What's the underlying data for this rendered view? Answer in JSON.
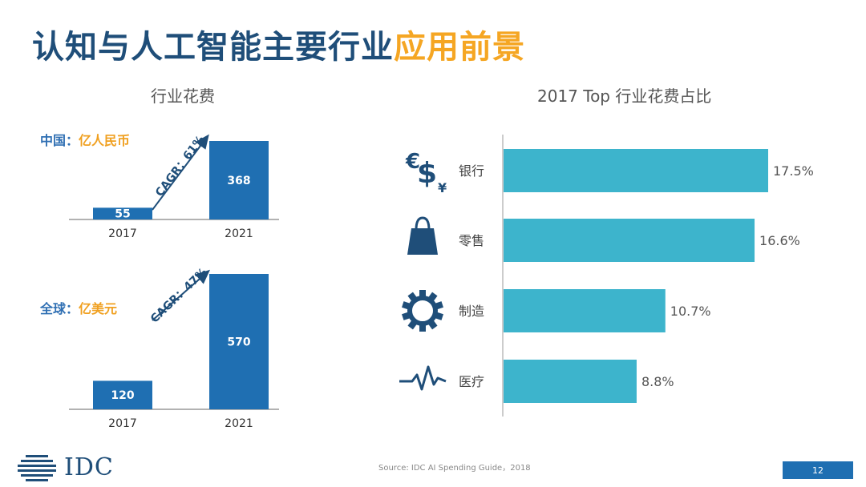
{
  "title": {
    "part1": "认知与人工智能主要行业",
    "part2": "应用前景"
  },
  "colors": {
    "bar_blue": "#1f6fb2",
    "bar_teal": "#3db4cc",
    "accent_orange": "#f5a623",
    "navy": "#1f4e79"
  },
  "left_section_title": "行业花费",
  "right_section_title": "2017 Top 行业花费占比",
  "chart_data": [
    {
      "type": "bar",
      "region": "中国",
      "separator": "：",
      "unit": "亿人民币",
      "categories": [
        "2017",
        "2021"
      ],
      "values": [
        55,
        368
      ],
      "value_labels": [
        "55",
        "368"
      ],
      "cagr_label": "CAGR：61%"
    },
    {
      "type": "bar",
      "region": "全球",
      "separator": "：",
      "unit": "亿美元",
      "categories": [
        "2017",
        "2021"
      ],
      "values": [
        120,
        570
      ],
      "value_labels": [
        "120",
        "570"
      ],
      "cagr_label": "CAGR：47%"
    },
    {
      "type": "bar",
      "orientation": "horizontal",
      "title": "2017 Top 行业花费占比",
      "categories": [
        "银行",
        "零售",
        "制造",
        "医疗"
      ],
      "values": [
        17.5,
        16.6,
        10.7,
        8.8
      ],
      "value_labels": [
        "17.5%",
        "16.6%",
        "10.7%",
        "8.8%"
      ],
      "icons": [
        "currency-icon",
        "shopping-bag-icon",
        "gear-icon",
        "heartbeat-icon"
      ]
    }
  ],
  "footer": {
    "logo_text": "IDC",
    "source": "Source: IDC AI Spending Guide，2018",
    "page_number": "12"
  }
}
